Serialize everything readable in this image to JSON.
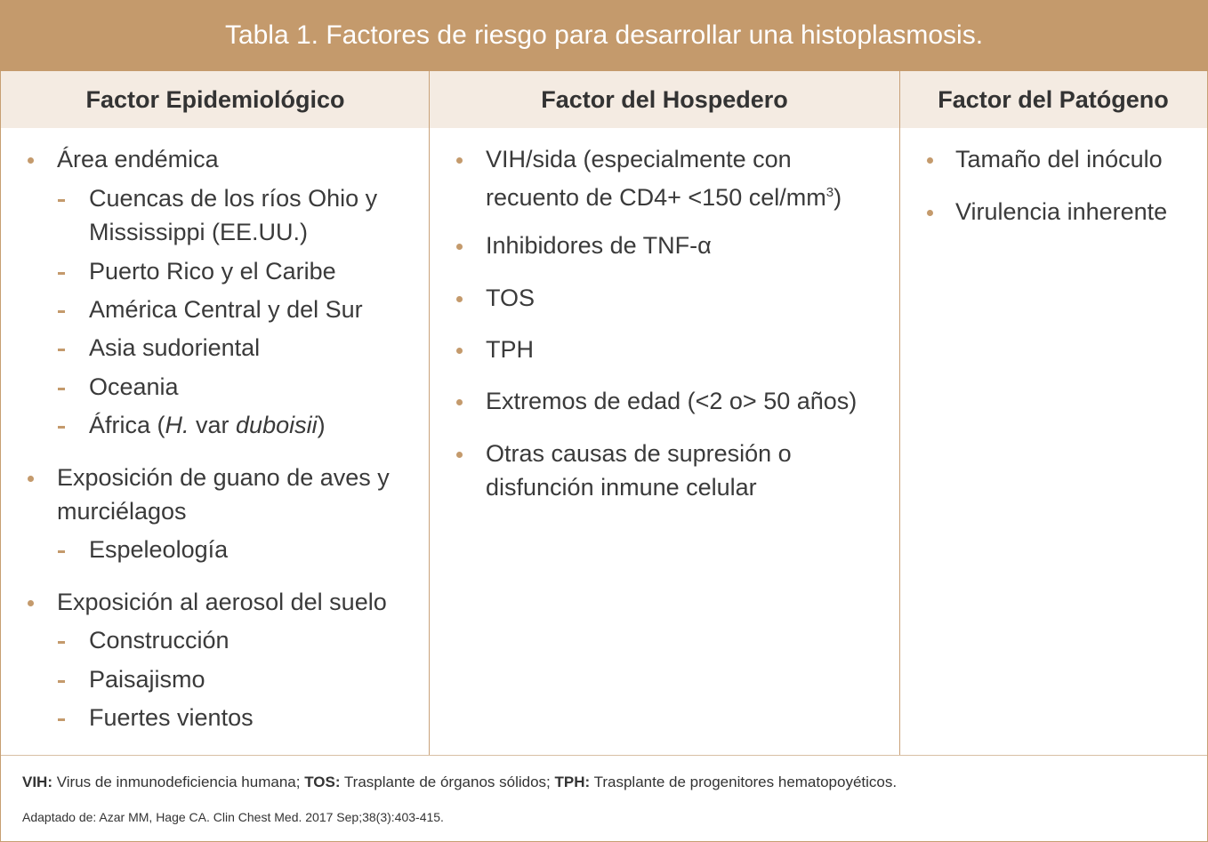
{
  "title": "Tabla 1. Factores de riesgo para desarrollar una histoplasmosis.",
  "columns": [
    {
      "header": "Factor Epidemiológico"
    },
    {
      "header": "Factor del Hospedero"
    },
    {
      "header": "Factor del Patógeno"
    }
  ],
  "epidemiologico": {
    "area": "Área endémica",
    "area_sub": [
      "Cuencas de los ríos Ohio y",
      "Mississippi (EE.UU.)",
      "Puerto Rico y el Caribe",
      "América Central y del Sur",
      "Asia sudoriental",
      "Oceania"
    ],
    "africa_pre": "África (",
    "africa_h": "H.",
    "africa_var": " var ",
    "africa_dub": "duboisii",
    "africa_post": ")",
    "guano_1": "Exposición de guano de aves y",
    "guano_2": "murciélagos",
    "guano_sub": "Espeleología",
    "aerosol": "Exposición al aerosol del suelo",
    "aerosol_sub": [
      "Construcción",
      "Paisajismo",
      "Fuertes vientos"
    ]
  },
  "hospedero": {
    "vih_1": "VIH/sida (especialmente con",
    "vih_2": "recuento de CD4+ <150 cel/mm",
    "vih_sup": "3",
    "vih_close": ")",
    "items": [
      "Inhibidores de TNF-α",
      "TOS",
      "TPH",
      "Extremos de edad (<2 o> 50 años)"
    ],
    "otras_1": "Otras causas de supresión o",
    "otras_2": "disfunción inmune celular"
  },
  "patogeno": {
    "items": [
      "Tamaño del inóculo",
      "Virulencia inherente"
    ]
  },
  "footnote": {
    "vih_abbr": "VIH:",
    "vih_def": " Virus de inmunodeficiencia humana; ",
    "tos_abbr": "TOS:",
    "tos_def": " Trasplante de órganos sólidos; ",
    "tph_abbr": "TPH:",
    "tph_def": " Trasplante de progenitores hematopoyéticos."
  },
  "source": "Adaptado de: Azar MM, Hage CA. Clin Chest Med. 2017 Sep;38(3):403-415.",
  "colors": {
    "accent": "#c49a6c",
    "header_bg": "#f4ebe2",
    "border": "#c9a27a"
  }
}
